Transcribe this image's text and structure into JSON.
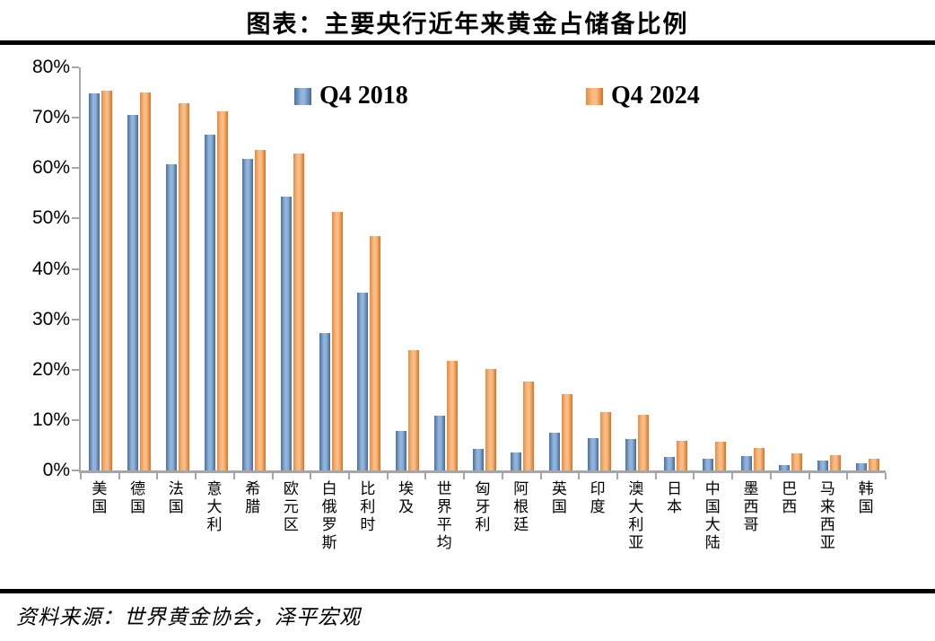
{
  "title": "图表：主要央行近年来黄金占储备比例",
  "source": "资料来源：世界黄金协会，泽平宏观",
  "chart_data": {
    "type": "bar",
    "title": "图表：主要央行近年来黄金占储备比例",
    "categories": [
      "美国",
      "德国",
      "法国",
      "意大利",
      "希腊",
      "欧元区",
      "白俄罗斯",
      "比利时",
      "埃及",
      "世界平均",
      "匈牙利",
      "阿根廷",
      "英国",
      "印度",
      "澳大利亚",
      "日本",
      "中国大陆",
      "墨西哥",
      "巴西",
      "马来西亚",
      "韩国"
    ],
    "series": [
      {
        "name": "Q4 2018",
        "color": "#6d94c4",
        "values": [
          74.8,
          70.5,
          60.8,
          66.6,
          61.8,
          54.4,
          27.3,
          35.2,
          7.8,
          10.8,
          4.2,
          3.5,
          7.4,
          6.4,
          6.2,
          2.6,
          2.4,
          2.9,
          1.0,
          1.9,
          1.4
        ]
      },
      {
        "name": "Q4 2024",
        "color": "#ee8a3c",
        "values": [
          75.4,
          75.0,
          72.8,
          71.3,
          63.6,
          62.9,
          51.3,
          46.5,
          23.9,
          21.8,
          20.2,
          17.6,
          15.1,
          11.6,
          11.0,
          5.9,
          5.7,
          4.4,
          3.3,
          3.0,
          2.3
        ]
      }
    ],
    "ylabel": "",
    "xlabel": "",
    "ylim": [
      0,
      80
    ],
    "ytick_step": 10,
    "yticks": [
      "0%",
      "10%",
      "20%",
      "30%",
      "40%",
      "50%",
      "60%",
      "70%",
      "80%"
    ],
    "grid": false,
    "legend_position": "top-inside",
    "axis_color": "#a6a6a6"
  }
}
